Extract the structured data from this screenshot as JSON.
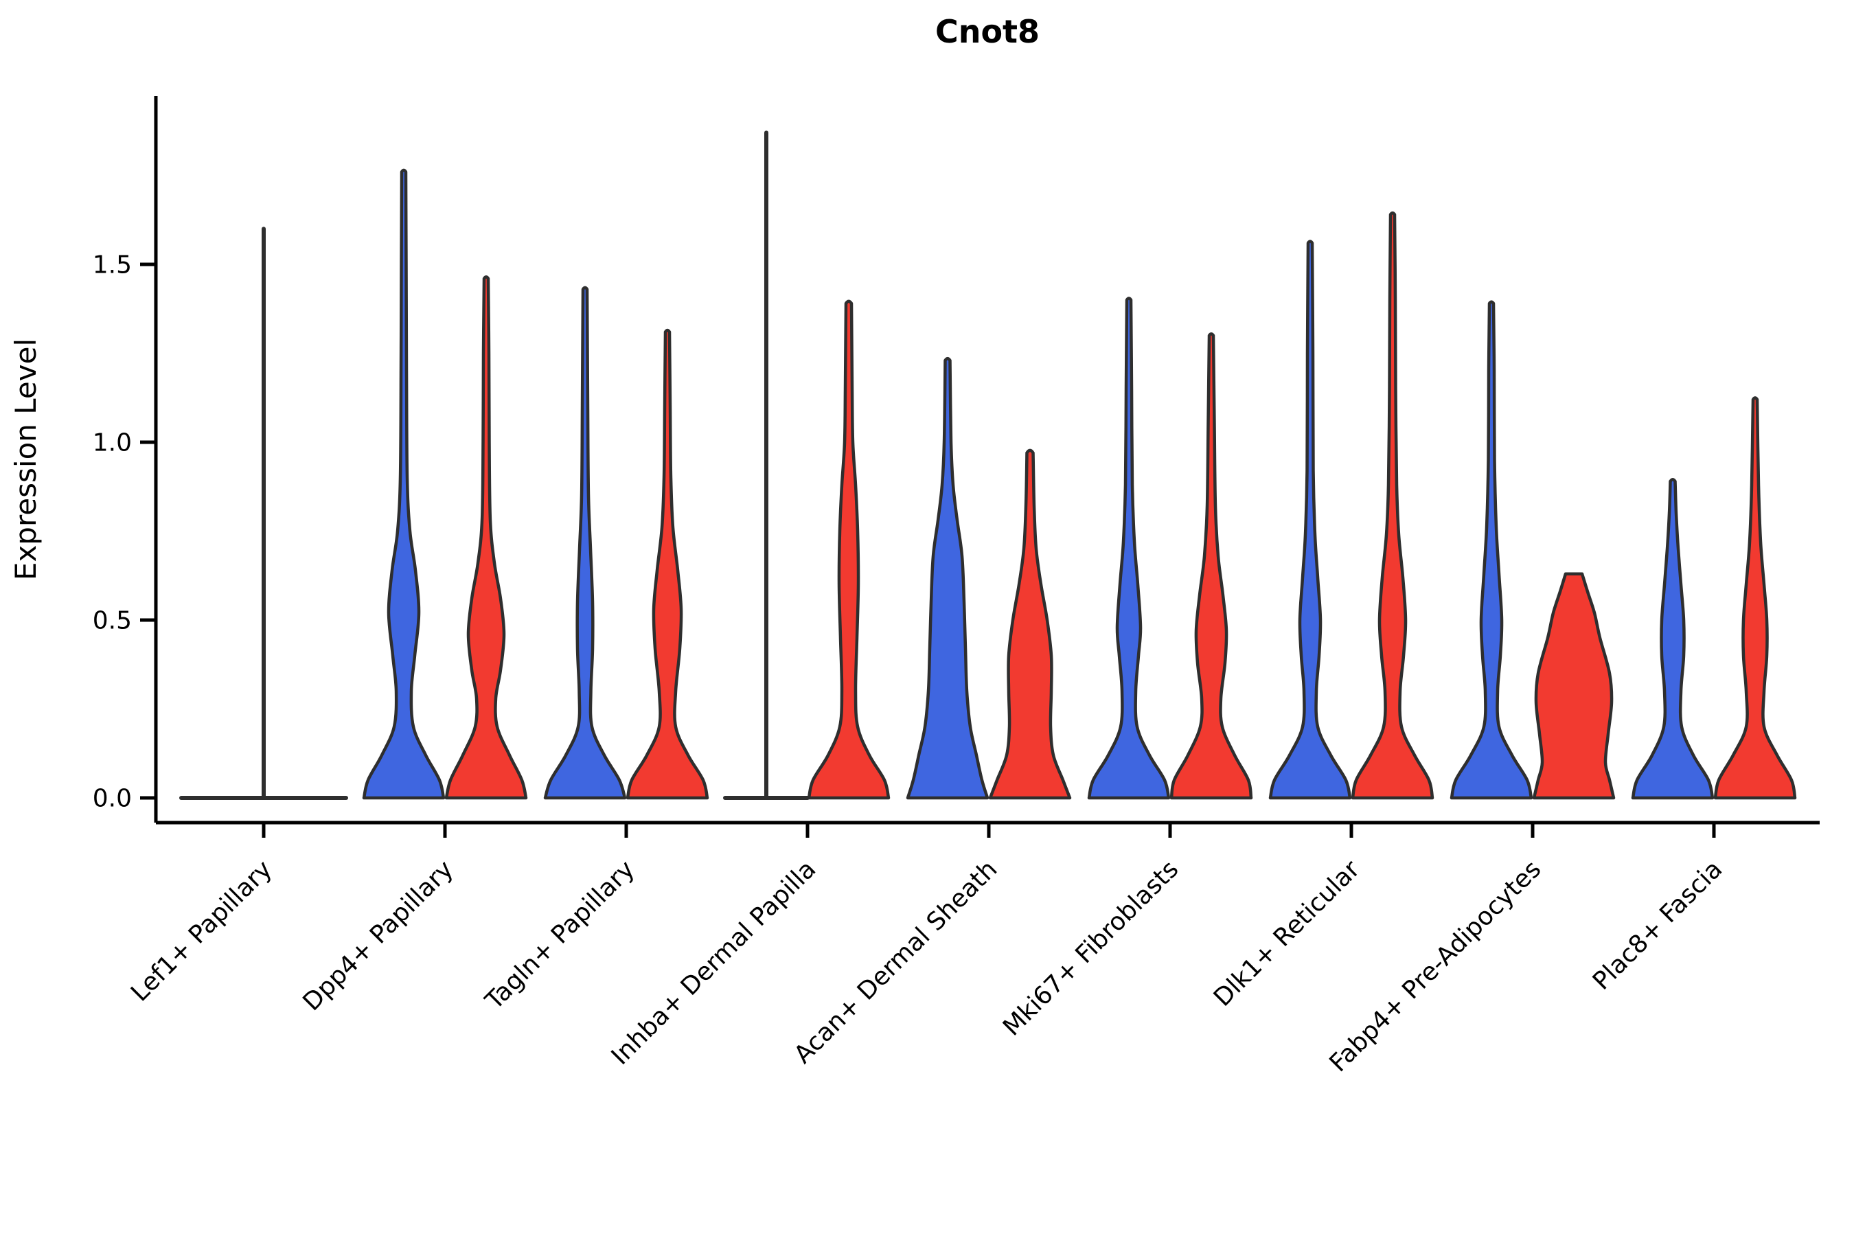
{
  "title": "Cnot8",
  "chart_data": {
    "type": "violin",
    "title": "Cnot8",
    "xlabel": "",
    "ylabel": "Expression Level",
    "ylim": [
      0,
      1.97
    ],
    "grid": false,
    "legend": "none",
    "yticks": [
      {
        "value": 0.0,
        "label": "0.0"
      },
      {
        "value": 0.5,
        "label": "0.5"
      },
      {
        "value": 1.0,
        "label": "1.0"
      },
      {
        "value": 1.5,
        "label": "1.5"
      }
    ],
    "categories": [
      "Lef1+ Papillary",
      "Dpp4+ Papillary",
      "Tagln+ Papillary",
      "Inhba+ Dermal Papilla",
      "Acan+ Dermal Sheath",
      "Mki67+ Fibroblasts",
      "Dlk1+ Reticular",
      "Fabp4+ Pre-Adipocytes",
      "Plac8+ Fascia"
    ],
    "series": [
      {
        "id": "group_blue",
        "color": "#3F66E0"
      },
      {
        "id": "group_red",
        "color": "#F23A30"
      }
    ],
    "outline_color": "#2E2E2E",
    "violins": [
      {
        "category_index": 0,
        "group": "both",
        "style": "flat_spike",
        "flat_half_width_rel": 1.0,
        "max": 1.6
      },
      {
        "category_index": 1,
        "group": "group_blue",
        "style": "violin",
        "max": 1.76,
        "cap": "round",
        "profile": [
          [
            0,
            58
          ],
          [
            0.05,
            52
          ],
          [
            0.12,
            32
          ],
          [
            0.2,
            14
          ],
          [
            0.3,
            11
          ],
          [
            0.4,
            16
          ],
          [
            0.52,
            22
          ],
          [
            0.64,
            17
          ],
          [
            0.75,
            9
          ],
          [
            0.9,
            5
          ],
          [
            1.2,
            4
          ],
          [
            1.5,
            3.5
          ],
          [
            1.76,
            3
          ]
        ]
      },
      {
        "category_index": 1,
        "group": "group_red",
        "style": "violin",
        "max": 1.46,
        "cap": "round",
        "profile": [
          [
            0,
            58
          ],
          [
            0.05,
            52
          ],
          [
            0.12,
            34
          ],
          [
            0.2,
            16
          ],
          [
            0.28,
            14
          ],
          [
            0.36,
            21
          ],
          [
            0.46,
            26
          ],
          [
            0.56,
            21
          ],
          [
            0.66,
            12
          ],
          [
            0.78,
            6
          ],
          [
            1.0,
            4.5
          ],
          [
            1.25,
            4
          ],
          [
            1.46,
            3
          ]
        ]
      },
      {
        "category_index": 2,
        "group": "group_blue",
        "style": "violin",
        "max": 1.43,
        "cap": "round",
        "profile": [
          [
            0,
            58
          ],
          [
            0.05,
            50
          ],
          [
            0.12,
            28
          ],
          [
            0.2,
            10
          ],
          [
            0.3,
            8.5
          ],
          [
            0.42,
            11
          ],
          [
            0.55,
            11
          ],
          [
            0.7,
            8
          ],
          [
            0.85,
            5
          ],
          [
            1.1,
            4
          ],
          [
            1.43,
            3
          ]
        ]
      },
      {
        "category_index": 2,
        "group": "group_red",
        "style": "violin",
        "max": 1.31,
        "cap": "round",
        "profile": [
          [
            0,
            58
          ],
          [
            0.05,
            52
          ],
          [
            0.12,
            30
          ],
          [
            0.2,
            12
          ],
          [
            0.3,
            12
          ],
          [
            0.42,
            18
          ],
          [
            0.53,
            20
          ],
          [
            0.64,
            15
          ],
          [
            0.76,
            8
          ],
          [
            0.9,
            5
          ],
          [
            1.1,
            4
          ],
          [
            1.31,
            3
          ]
        ]
      },
      {
        "category_index": 3,
        "group": "group_blue",
        "style": "flat_spike",
        "flat_half_width_rel": 0.5,
        "max": 1.87
      },
      {
        "category_index": 3,
        "group": "group_red",
        "style": "violin",
        "max": 1.39,
        "cap": "round",
        "profile": [
          [
            0,
            58
          ],
          [
            0.05,
            52
          ],
          [
            0.12,
            30
          ],
          [
            0.2,
            13
          ],
          [
            0.3,
            10
          ],
          [
            0.45,
            12
          ],
          [
            0.6,
            14
          ],
          [
            0.75,
            13
          ],
          [
            0.88,
            10
          ],
          [
            1.0,
            6
          ],
          [
            1.15,
            5
          ],
          [
            1.39,
            4
          ]
        ]
      },
      {
        "category_index": 4,
        "group": "group_blue",
        "style": "violin",
        "max": 1.23,
        "cap": "round",
        "profile": [
          [
            0,
            58
          ],
          [
            0.05,
            50
          ],
          [
            0.12,
            42
          ],
          [
            0.2,
            33
          ],
          [
            0.3,
            28
          ],
          [
            0.42,
            26
          ],
          [
            0.55,
            24
          ],
          [
            0.68,
            21
          ],
          [
            0.78,
            14
          ],
          [
            0.88,
            8
          ],
          [
            1.0,
            5
          ],
          [
            1.23,
            3.5
          ]
        ]
      },
      {
        "category_index": 4,
        "group": "group_red",
        "style": "violin",
        "max": 0.97,
        "cap": "round",
        "profile": [
          [
            0,
            58
          ],
          [
            0.05,
            48
          ],
          [
            0.12,
            34
          ],
          [
            0.2,
            30
          ],
          [
            0.3,
            31
          ],
          [
            0.4,
            31
          ],
          [
            0.5,
            25
          ],
          [
            0.6,
            16
          ],
          [
            0.7,
            9
          ],
          [
            0.82,
            6
          ],
          [
            0.97,
            4.5
          ]
        ]
      },
      {
        "category_index": 5,
        "group": "group_blue",
        "style": "violin",
        "max": 1.4,
        "cap": "round",
        "profile": [
          [
            0,
            58
          ],
          [
            0.05,
            52
          ],
          [
            0.12,
            30
          ],
          [
            0.2,
            12
          ],
          [
            0.3,
            10
          ],
          [
            0.4,
            14
          ],
          [
            0.48,
            17
          ],
          [
            0.6,
            13
          ],
          [
            0.72,
            8
          ],
          [
            0.88,
            5
          ],
          [
            1.15,
            4
          ],
          [
            1.4,
            3
          ]
        ]
      },
      {
        "category_index": 5,
        "group": "group_red",
        "style": "violin",
        "max": 1.3,
        "cap": "round",
        "profile": [
          [
            0,
            58
          ],
          [
            0.05,
            54
          ],
          [
            0.12,
            34
          ],
          [
            0.2,
            16
          ],
          [
            0.28,
            14
          ],
          [
            0.38,
            20
          ],
          [
            0.47,
            22
          ],
          [
            0.57,
            17
          ],
          [
            0.68,
            10
          ],
          [
            0.82,
            6
          ],
          [
            1.05,
            4.5
          ],
          [
            1.3,
            3
          ]
        ]
      },
      {
        "category_index": 6,
        "group": "group_blue",
        "style": "violin",
        "max": 1.56,
        "cap": "round",
        "profile": [
          [
            0,
            58
          ],
          [
            0.05,
            52
          ],
          [
            0.12,
            30
          ],
          [
            0.2,
            11
          ],
          [
            0.3,
            9
          ],
          [
            0.4,
            13
          ],
          [
            0.5,
            15
          ],
          [
            0.62,
            11
          ],
          [
            0.74,
            7
          ],
          [
            0.92,
            4.5
          ],
          [
            1.25,
            4
          ],
          [
            1.56,
            3
          ]
        ]
      },
      {
        "category_index": 6,
        "group": "group_red",
        "style": "violin",
        "max": 1.64,
        "cap": "round",
        "profile": [
          [
            0,
            58
          ],
          [
            0.05,
            53
          ],
          [
            0.12,
            32
          ],
          [
            0.2,
            13
          ],
          [
            0.3,
            11
          ],
          [
            0.4,
            16
          ],
          [
            0.5,
            19
          ],
          [
            0.62,
            15
          ],
          [
            0.74,
            9
          ],
          [
            0.88,
            6
          ],
          [
            1.15,
            4.5
          ],
          [
            1.4,
            4
          ],
          [
            1.64,
            3
          ]
        ]
      },
      {
        "category_index": 7,
        "group": "group_blue",
        "style": "violin",
        "max": 1.39,
        "cap": "round",
        "profile": [
          [
            0,
            58
          ],
          [
            0.05,
            52
          ],
          [
            0.12,
            30
          ],
          [
            0.2,
            11
          ],
          [
            0.3,
            9
          ],
          [
            0.4,
            13
          ],
          [
            0.5,
            15
          ],
          [
            0.63,
            11
          ],
          [
            0.76,
            7
          ],
          [
            0.95,
            4.5
          ],
          [
            1.2,
            4
          ],
          [
            1.39,
            3
          ]
        ]
      },
      {
        "category_index": 7,
        "group": "group_red",
        "style": "violin",
        "max": 0.63,
        "cap": "flat",
        "profile": [
          [
            0,
            58
          ],
          [
            0.05,
            52
          ],
          [
            0.1,
            46
          ],
          [
            0.18,
            50
          ],
          [
            0.27,
            55
          ],
          [
            0.35,
            52
          ],
          [
            0.45,
            38
          ],
          [
            0.52,
            30
          ],
          [
            0.58,
            20
          ],
          [
            0.63,
            12
          ]
        ]
      },
      {
        "category_index": 8,
        "group": "group_blue",
        "style": "violin",
        "max": 0.89,
        "cap": "round",
        "profile": [
          [
            0,
            58
          ],
          [
            0.05,
            52
          ],
          [
            0.12,
            30
          ],
          [
            0.2,
            13
          ],
          [
            0.3,
            12
          ],
          [
            0.4,
            16
          ],
          [
            0.5,
            16
          ],
          [
            0.6,
            12
          ],
          [
            0.7,
            8
          ],
          [
            0.8,
            5
          ],
          [
            0.89,
            3.5
          ]
        ]
      },
      {
        "category_index": 8,
        "group": "group_red",
        "style": "violin",
        "max": 1.12,
        "cap": "round",
        "profile": [
          [
            0,
            58
          ],
          [
            0.05,
            53
          ],
          [
            0.12,
            32
          ],
          [
            0.2,
            13
          ],
          [
            0.3,
            13
          ],
          [
            0.4,
            17
          ],
          [
            0.5,
            17
          ],
          [
            0.6,
            13
          ],
          [
            0.72,
            8
          ],
          [
            0.88,
            5
          ],
          [
            1.12,
            3
          ]
        ]
      }
    ]
  }
}
